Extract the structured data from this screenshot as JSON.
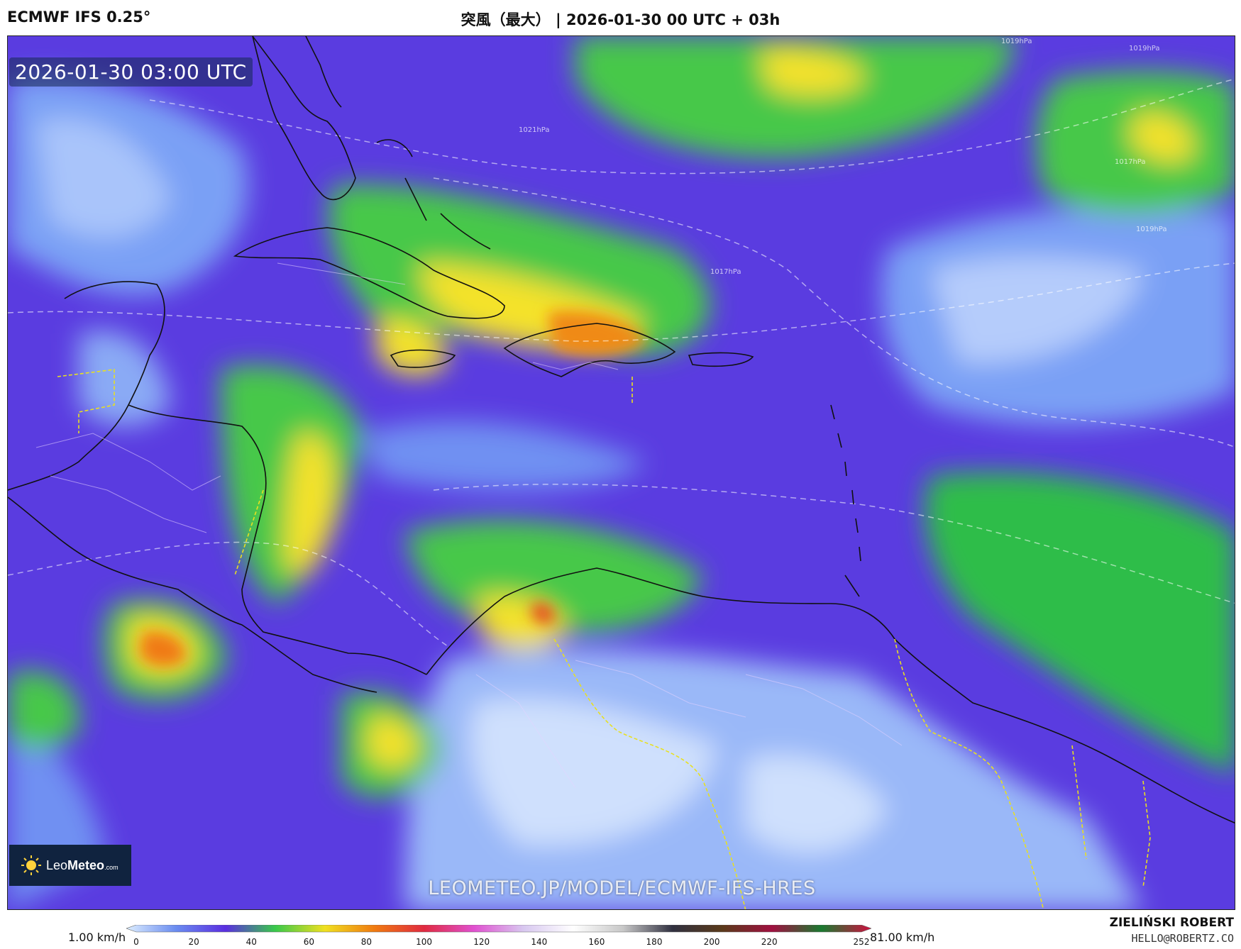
{
  "header": {
    "model": "ECMWF IFS 0.25°",
    "title": "突風（最大） | 2026-01-30 00 UTC + 03h"
  },
  "map": {
    "valid_time": "2026-01-30 03:00 UTC",
    "watermark": "LEOMETEO.JP/MODEL/ECMWF-IFS-HRES",
    "logo": {
      "prefix": "Leo",
      "brand": "Meteo",
      "suffix": ".com"
    },
    "isobar_labels": [
      "1021hPa",
      "1017hPa",
      "1017hPa",
      "1019hPa",
      "1019hPa",
      "1019hPa"
    ]
  },
  "legend": {
    "unit_min": "1.00 km/h",
    "unit_max": "81.00 km/h",
    "ticks": [
      "0",
      "20",
      "40",
      "60",
      "80",
      "100",
      "120",
      "140",
      "160",
      "180",
      "200",
      "220",
      "252"
    ],
    "tick_values": [
      0,
      20,
      40,
      60,
      80,
      100,
      120,
      140,
      160,
      180,
      200,
      220,
      252
    ],
    "max_value": 252,
    "colors": [
      "#ddeeff",
      "#6a8cf0",
      "#5a2ee0",
      "#39c94a",
      "#f0e020",
      "#f07a10",
      "#e02a40",
      "#e050d0",
      "#d8c8f0",
      "#ffffff",
      "#c8c8c8",
      "#303040",
      "#5a3a1a",
      "#a01040",
      "#1a7a30",
      "#d01040"
    ]
  },
  "credit": {
    "name": "ZIELIŃSKI ROBERT",
    "email": "HELLO@ROBERTZ.CO"
  }
}
